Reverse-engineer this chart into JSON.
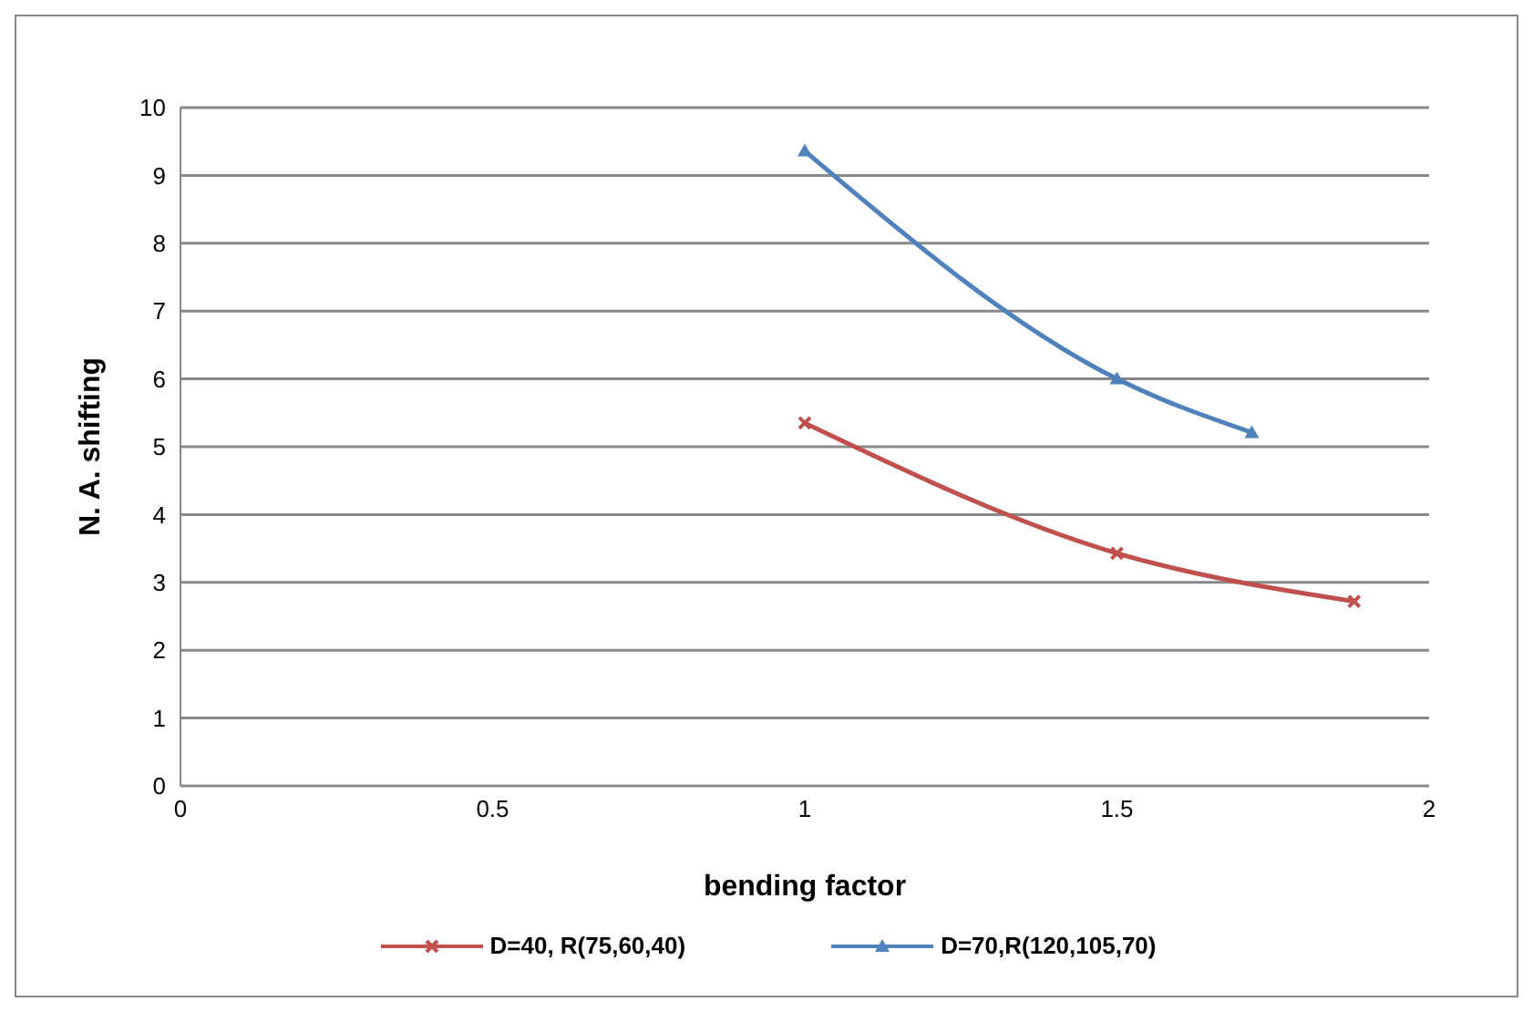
{
  "chart_data": {
    "type": "line",
    "xlabel": "bending factor",
    "ylabel": "N. A. shifting",
    "xlim": [
      0,
      2
    ],
    "xticks": [
      0,
      0.5,
      1,
      1.5,
      2
    ],
    "ylim": [
      0,
      10
    ],
    "yticks": [
      0,
      1,
      2,
      3,
      4,
      5,
      6,
      7,
      8,
      9,
      10
    ],
    "grid": "y",
    "legend": "bottom",
    "series": [
      {
        "name": "D=40, R(75,60,40)",
        "color": "#c0504d",
        "marker": "cross",
        "x": [
          1,
          1.5,
          1.88
        ],
        "values": [
          5.35,
          3.43,
          2.72
        ]
      },
      {
        "name": "D=70,R(120,105,70)",
        "color": "#4f81bd",
        "marker": "triangle",
        "x": [
          1,
          1.5,
          1.716
        ],
        "values": [
          9.36,
          6.0,
          5.21
        ]
      }
    ]
  }
}
